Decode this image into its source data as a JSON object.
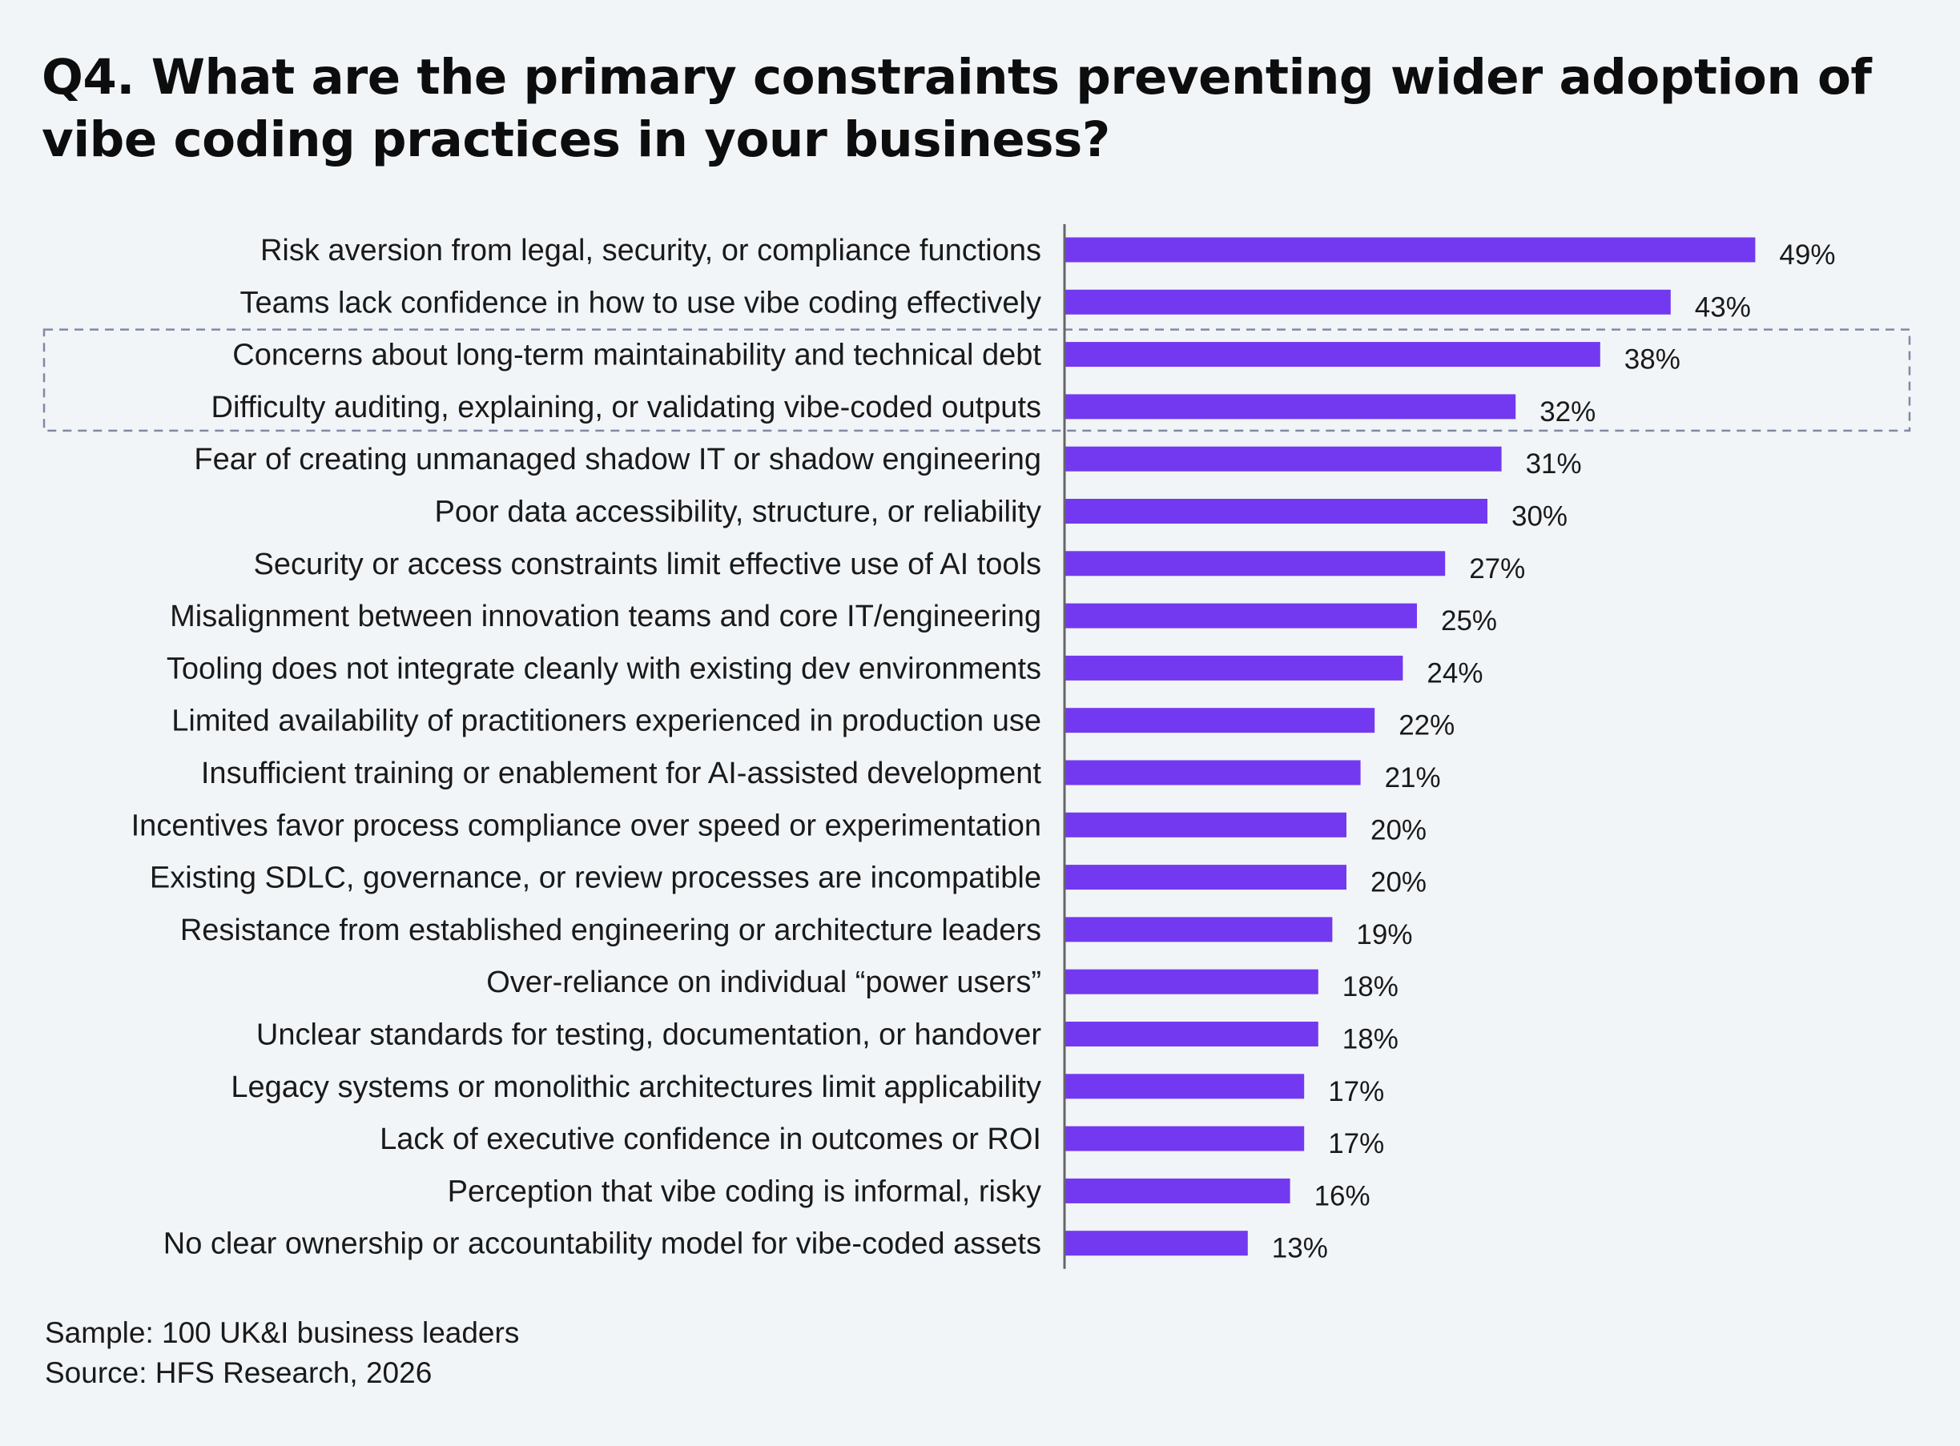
{
  "title": "Q4. What are the primary constraints preventing wider adoption of vibe coding practices in your business?",
  "footer": {
    "sample": "Sample: 100 UK&I business leaders",
    "source": "Source: HFS Research, 2026"
  },
  "colors": {
    "bar": "#7339f0",
    "axis": "#666666",
    "highlight_border": "#7f8aa3",
    "background": "#f2f5f8"
  },
  "chart_data": {
    "type": "bar",
    "orientation": "horizontal",
    "title": "Q4. What are the primary constraints preventing wider adoption of vibe coding practices in your business?",
    "xlabel": "",
    "ylabel": "",
    "xlim": [
      0,
      50
    ],
    "grid": false,
    "categories": [
      "Risk aversion from legal, security, or compliance functions",
      "Teams lack confidence in how to use vibe coding effectively",
      "Concerns about long-term maintainability and technical debt",
      "Difficulty auditing, explaining, or validating vibe-coded outputs",
      "Fear of creating unmanaged shadow IT or shadow engineering",
      "Poor data accessibility, structure, or reliability",
      "Security or access constraints limit effective use of AI tools",
      "Misalignment between innovation teams and core IT/engineering",
      "Tooling does not integrate cleanly with existing dev environments",
      "Limited availability of practitioners experienced in production use",
      "Insufficient training or enablement for AI-assisted development",
      "Incentives favor process compliance over speed or experimentation",
      "Existing SDLC, governance, or review processes are incompatible",
      "Resistance from established engineering or architecture leaders",
      "Over-reliance on individual “power users”",
      "Unclear standards for testing, documentation, or handover",
      "Legacy systems or monolithic architectures limit applicability",
      "Lack of executive confidence in outcomes or ROI",
      "Perception that vibe coding is informal, risky",
      "No clear ownership or accountability model for vibe-coded assets"
    ],
    "values": [
      49,
      43,
      38,
      32,
      31,
      30,
      27,
      25,
      24,
      22,
      21,
      20,
      20,
      19,
      18,
      18,
      17,
      17,
      16,
      13
    ],
    "value_labels": [
      "49%",
      "43%",
      "38%",
      "32%",
      "31%",
      "30%",
      "27%",
      "25%",
      "24%",
      "22%",
      "21%",
      "20%",
      "20%",
      "19%",
      "18%",
      "18%",
      "17%",
      "17%",
      "16%",
      "13%"
    ],
    "highlighted_categories": [
      "Concerns about long-term maintainability and technical debt",
      "Difficulty auditing, explaining, or validating vibe-coded outputs"
    ]
  }
}
